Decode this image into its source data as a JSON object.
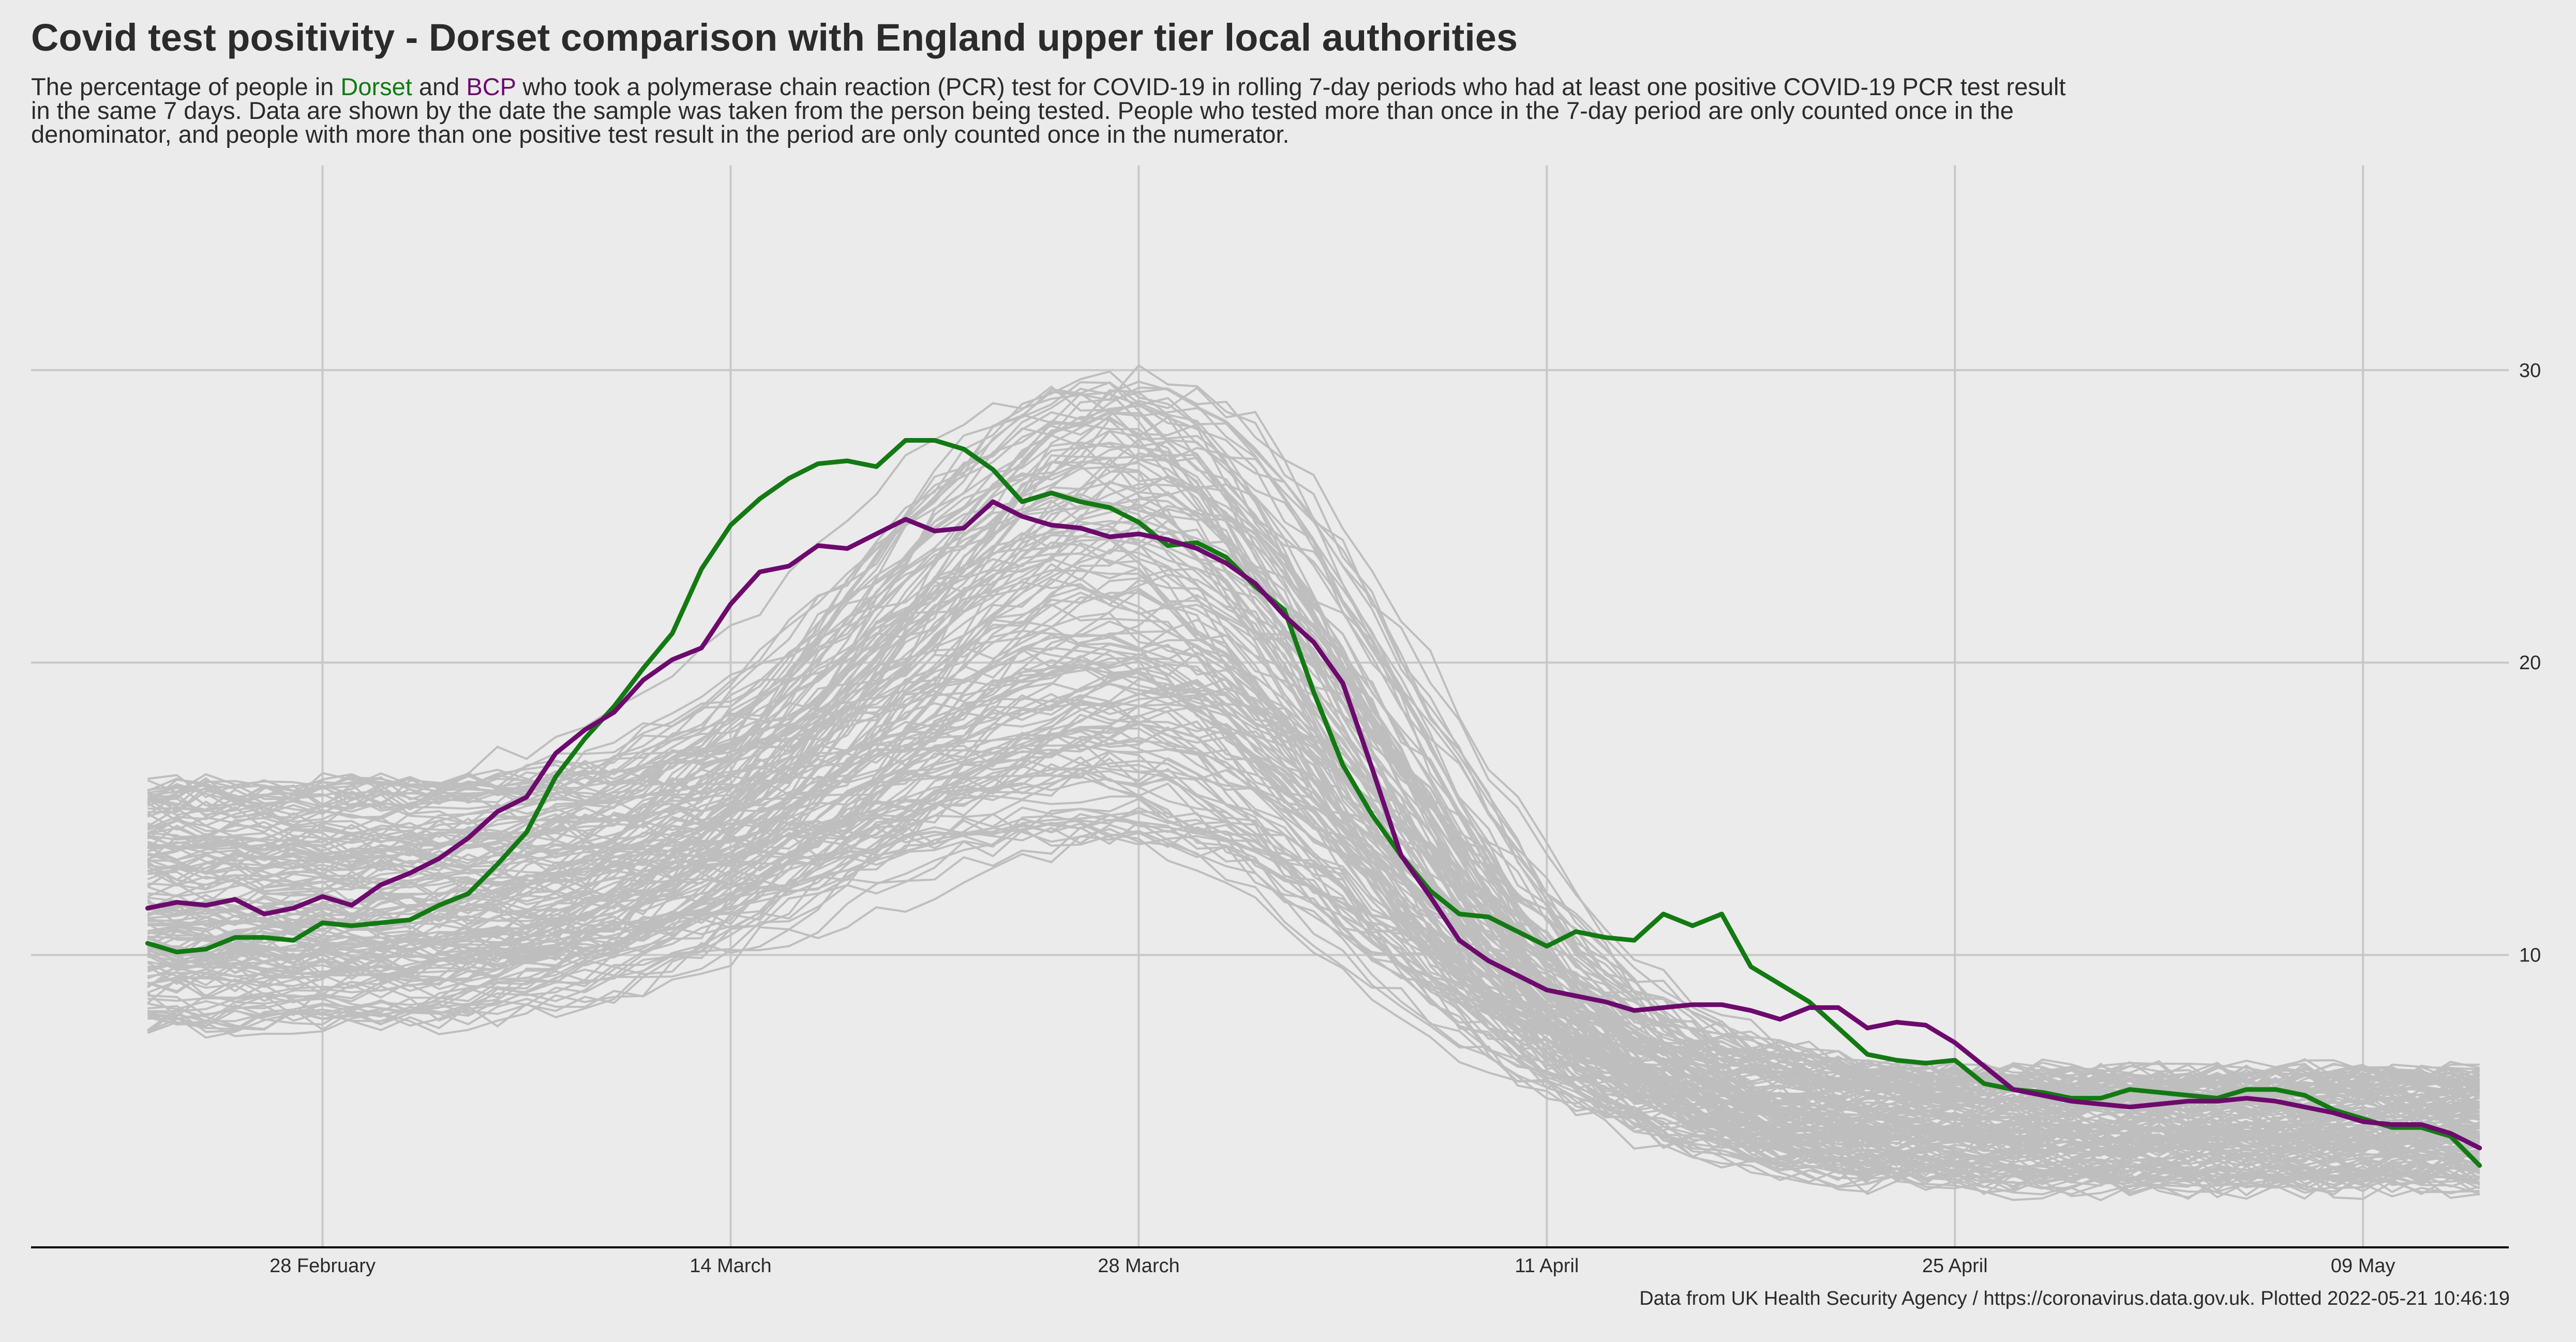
{
  "title": "Covid test positivity - Dorset comparison with England upper tier local authorities",
  "subtitle": {
    "part1": "The percentage of people in ",
    "dorset": "Dorset",
    "part2": " and ",
    "bcp": "BCP",
    "part3": " who took a polymerase chain reaction (PCR) test for COVID-19 in rolling 7-day periods who had at least one positive COVID-19 PCR test result in the same 7 days. Data are shown by the date the sample was taken from the person being tested. People who tested more than once in the 7-day period are only counted once in the denominator, and people with more than one positive test result in the period are only counted once in the numerator."
  },
  "caption": "Data from UK Health Security Agency / https://coronavirus.data.gov.uk. Plotted 2022-05-21 10:46:19",
  "colors": {
    "background": "#ebebeb",
    "grid": "#c8c8c8",
    "other_authorities": "#bebebe",
    "dorset": "#137a13",
    "bcp": "#6d0a6d",
    "axis": "#000000"
  },
  "chart_data": {
    "type": "line",
    "x_axis": {
      "type": "date",
      "range": [
        "2022-02-18",
        "2022-05-14"
      ],
      "ticks": [
        {
          "date": "2022-02-28",
          "label": "28 February"
        },
        {
          "date": "2022-03-14",
          "label": "14 March"
        },
        {
          "date": "2022-03-28",
          "label": "28 March"
        },
        {
          "date": "2022-04-11",
          "label": "11 April"
        },
        {
          "date": "2022-04-25",
          "label": "25 April"
        },
        {
          "date": "2022-05-09",
          "label": "09 May"
        }
      ]
    },
    "y_axis": {
      "position": "right",
      "range": [
        0,
        37
      ],
      "ticks": [
        {
          "value": 10,
          "label": "10"
        },
        {
          "value": 20,
          "label": "20"
        },
        {
          "value": 30,
          "label": "30"
        }
      ]
    },
    "grid": true,
    "legend": "none (series named in subtitle)",
    "x": [
      "2022-02-22",
      "2022-02-23",
      "2022-02-24",
      "2022-02-25",
      "2022-02-26",
      "2022-02-27",
      "2022-02-28",
      "2022-03-01",
      "2022-03-02",
      "2022-03-03",
      "2022-03-04",
      "2022-03-05",
      "2022-03-06",
      "2022-03-07",
      "2022-03-08",
      "2022-03-09",
      "2022-03-10",
      "2022-03-11",
      "2022-03-12",
      "2022-03-13",
      "2022-03-14",
      "2022-03-15",
      "2022-03-16",
      "2022-03-17",
      "2022-03-18",
      "2022-03-19",
      "2022-03-20",
      "2022-03-21",
      "2022-03-22",
      "2022-03-23",
      "2022-03-24",
      "2022-03-25",
      "2022-03-26",
      "2022-03-27",
      "2022-03-28",
      "2022-03-29",
      "2022-03-30",
      "2022-03-31",
      "2022-04-01",
      "2022-04-02",
      "2022-04-03",
      "2022-04-04",
      "2022-04-05",
      "2022-04-06",
      "2022-04-07",
      "2022-04-08",
      "2022-04-09",
      "2022-04-10",
      "2022-04-11",
      "2022-04-12",
      "2022-04-13",
      "2022-04-14",
      "2022-04-15",
      "2022-04-16",
      "2022-04-17",
      "2022-04-18",
      "2022-04-19",
      "2022-04-20",
      "2022-04-21",
      "2022-04-22",
      "2022-04-23",
      "2022-04-24",
      "2022-04-25",
      "2022-04-26",
      "2022-04-27",
      "2022-04-28",
      "2022-04-29",
      "2022-04-30",
      "2022-05-01",
      "2022-05-02",
      "2022-05-03",
      "2022-05-04",
      "2022-05-05",
      "2022-05-06",
      "2022-05-07",
      "2022-05-08",
      "2022-05-09",
      "2022-05-10",
      "2022-05-11",
      "2022-05-12",
      "2022-05-13"
    ],
    "series": [
      {
        "name": "Dorset",
        "values": [
          10.4,
          10.1,
          10.2,
          10.6,
          10.6,
          10.5,
          11.1,
          11.0,
          11.1,
          11.2,
          11.7,
          12.1,
          13.1,
          14.2,
          16.1,
          17.4,
          18.5,
          19.8,
          21.0,
          23.2,
          24.7,
          25.6,
          26.3,
          26.8,
          26.9,
          26.7,
          27.6,
          27.6,
          27.3,
          26.6,
          25.5,
          25.8,
          25.5,
          25.3,
          24.8,
          24.0,
          24.1,
          23.6,
          22.6,
          21.8,
          19.0,
          16.5,
          14.8,
          13.4,
          12.2,
          11.4,
          11.3,
          10.8,
          10.3,
          10.8,
          10.6,
          10.5,
          11.4,
          11.0,
          11.4,
          9.6,
          9.0,
          8.4,
          7.5,
          6.6,
          6.4,
          6.3,
          6.4,
          5.6,
          5.4,
          5.3,
          5.1,
          5.1,
          5.4,
          5.3,
          5.2,
          5.1,
          5.4,
          5.4,
          5.2,
          4.7,
          4.4,
          4.1,
          4.1,
          3.8,
          2.8
        ]
      },
      {
        "name": "BCP",
        "values": [
          11.6,
          11.8,
          11.7,
          11.9,
          11.4,
          11.6,
          12.0,
          11.7,
          12.4,
          12.8,
          13.3,
          14.0,
          14.9,
          15.4,
          16.9,
          17.7,
          18.3,
          19.4,
          20.1,
          20.5,
          22.0,
          23.1,
          23.3,
          24.0,
          23.9,
          24.4,
          24.9,
          24.5,
          24.6,
          25.5,
          25.0,
          24.7,
          24.6,
          24.3,
          24.4,
          24.2,
          23.9,
          23.4,
          22.7,
          21.6,
          20.7,
          19.3,
          16.4,
          13.4,
          12.0,
          10.5,
          9.8,
          9.3,
          8.8,
          8.6,
          8.4,
          8.1,
          8.2,
          8.3,
          8.3,
          8.1,
          7.8,
          8.2,
          8.2,
          7.5,
          7.7,
          7.6,
          7.0,
          6.2,
          5.4,
          5.2,
          5.0,
          4.9,
          4.8,
          4.9,
          5.0,
          5.0,
          5.1,
          5.0,
          4.8,
          4.6,
          4.3,
          4.2,
          4.2,
          3.9,
          3.4
        ]
      }
    ],
    "background_series_note": "approx. 150 other England upper tier local authorities drawn as thin grey lines"
  }
}
